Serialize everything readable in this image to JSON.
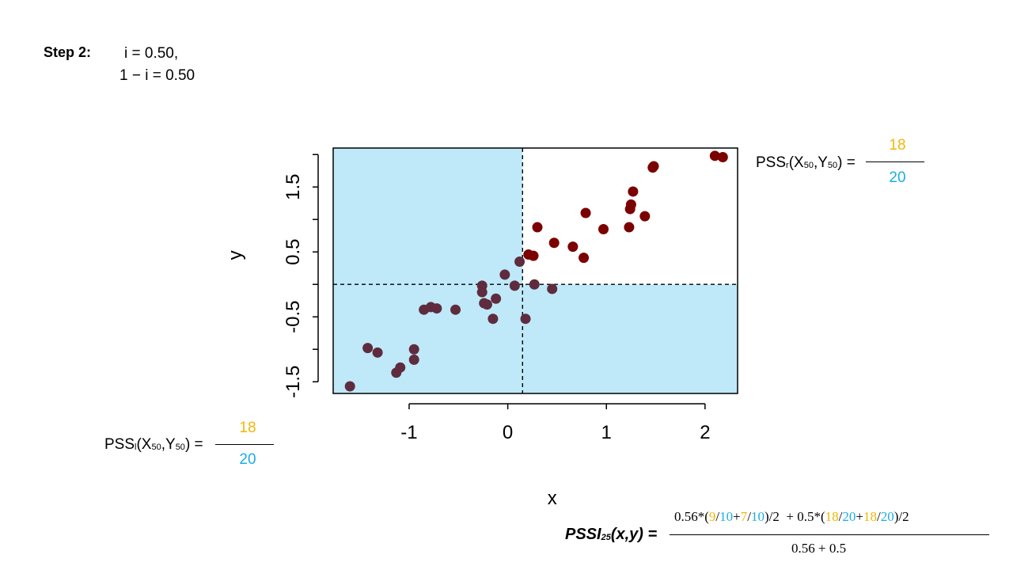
{
  "step": {
    "label": "Step 2:",
    "line1": "i = 0.50,",
    "line2": "1 − i = 0.50"
  },
  "pss_r": {
    "label_pre": "PSS",
    "label_sub1": "r",
    "label_mid": "(X",
    "label_sub2": "50",
    "label_mid2": ",Y",
    "label_sub3": "50",
    "label_post": ") =",
    "numerator": "18",
    "denominator": "20"
  },
  "pss_l": {
    "label_pre": "PSS",
    "label_sub1": "l",
    "label_mid": "(X",
    "label_sub2": "50",
    "label_mid2": ",Y",
    "label_sub3": "50",
    "label_post": ") =",
    "numerator": "18",
    "denominator": "20"
  },
  "formula": {
    "label_pre": "PSSI",
    "label_sub": "25",
    "label_post": "(x,y) =",
    "num_parts": [
      {
        "t": "0.56*(",
        "c": "black"
      },
      {
        "t": "9",
        "c": "gold"
      },
      {
        "t": "/",
        "c": "black"
      },
      {
        "t": "10",
        "c": "blue"
      },
      {
        "t": "+",
        "c": "black"
      },
      {
        "t": "7",
        "c": "gold"
      },
      {
        "t": "/",
        "c": "black"
      },
      {
        "t": "10",
        "c": "blue"
      },
      {
        "t": ")/2  + 0.5*(",
        "c": "black"
      },
      {
        "t": "18",
        "c": "gold"
      },
      {
        "t": "/",
        "c": "black"
      },
      {
        "t": "20",
        "c": "blue"
      },
      {
        "t": "+",
        "c": "black"
      },
      {
        "t": "18",
        "c": "gold"
      },
      {
        "t": "/",
        "c": "black"
      },
      {
        "t": "20",
        "c": "blue"
      },
      {
        "t": ")/2",
        "c": "black"
      }
    ],
    "denominator": "0.56 + 0.5"
  },
  "colors": {
    "gold": "#F2B705",
    "blue": "#1AAEE6",
    "shade": "#BFE9F8",
    "dark_red": "#7B0000",
    "purple_brown": "#5E2C3E"
  },
  "chart_data": {
    "type": "scatter",
    "xlabel": "x",
    "ylabel": "y",
    "xlim": [
      -1.77,
      2.33
    ],
    "ylim": [
      -1.68,
      2.1
    ],
    "xticks": [
      -1,
      0,
      1,
      2
    ],
    "xtick_labels": [
      "-1",
      "0",
      "1",
      "2"
    ],
    "yticks": [
      -1.5,
      -1.0,
      -0.5,
      0.0,
      0.5,
      1.0,
      1.5,
      2.0
    ],
    "ytick_labels": [
      "-1.5",
      "",
      "-0.5",
      "",
      "0.5",
      "",
      "1.5",
      ""
    ],
    "split_x": 0.15,
    "split_y": 0.0,
    "shaded_regions": [
      "lower-left",
      "upper-left",
      "lower-right"
    ],
    "series": [
      {
        "color": "#5E2C3E",
        "points": [
          [
            -1.6,
            -1.57
          ],
          [
            -1.42,
            -0.98
          ],
          [
            -1.32,
            -1.05
          ],
          [
            -1.13,
            -1.36
          ],
          [
            -1.09,
            -1.28
          ],
          [
            -0.95,
            -1.0
          ],
          [
            -0.95,
            -1.16
          ],
          [
            -0.85,
            -0.39
          ],
          [
            -0.78,
            -0.35
          ],
          [
            -0.72,
            -0.37
          ],
          [
            -0.53,
            -0.39
          ],
          [
            -0.26,
            -0.02
          ],
          [
            -0.26,
            -0.12
          ],
          [
            -0.24,
            -0.29
          ],
          [
            -0.21,
            -0.31
          ],
          [
            -0.15,
            -0.53
          ],
          [
            -0.12,
            -0.22
          ],
          [
            -0.03,
            0.15
          ],
          [
            0.07,
            -0.02
          ],
          [
            0.12,
            0.35
          ],
          [
            0.18,
            -0.53
          ],
          [
            0.27,
            0.0
          ],
          [
            0.45,
            -0.07
          ]
        ]
      },
      {
        "color": "#7B0000",
        "points": [
          [
            0.21,
            0.46
          ],
          [
            0.26,
            0.44
          ],
          [
            0.3,
            0.88
          ],
          [
            0.47,
            0.64
          ],
          [
            0.66,
            0.58
          ],
          [
            0.77,
            0.41
          ],
          [
            0.79,
            1.1
          ],
          [
            0.97,
            0.85
          ],
          [
            1.23,
            0.88
          ],
          [
            1.24,
            1.16
          ],
          [
            1.25,
            1.23
          ],
          [
            1.27,
            1.43
          ],
          [
            1.39,
            1.05
          ],
          [
            1.47,
            1.8
          ],
          [
            1.48,
            1.82
          ],
          [
            2.1,
            1.98
          ],
          [
            2.18,
            1.96
          ]
        ]
      }
    ]
  }
}
